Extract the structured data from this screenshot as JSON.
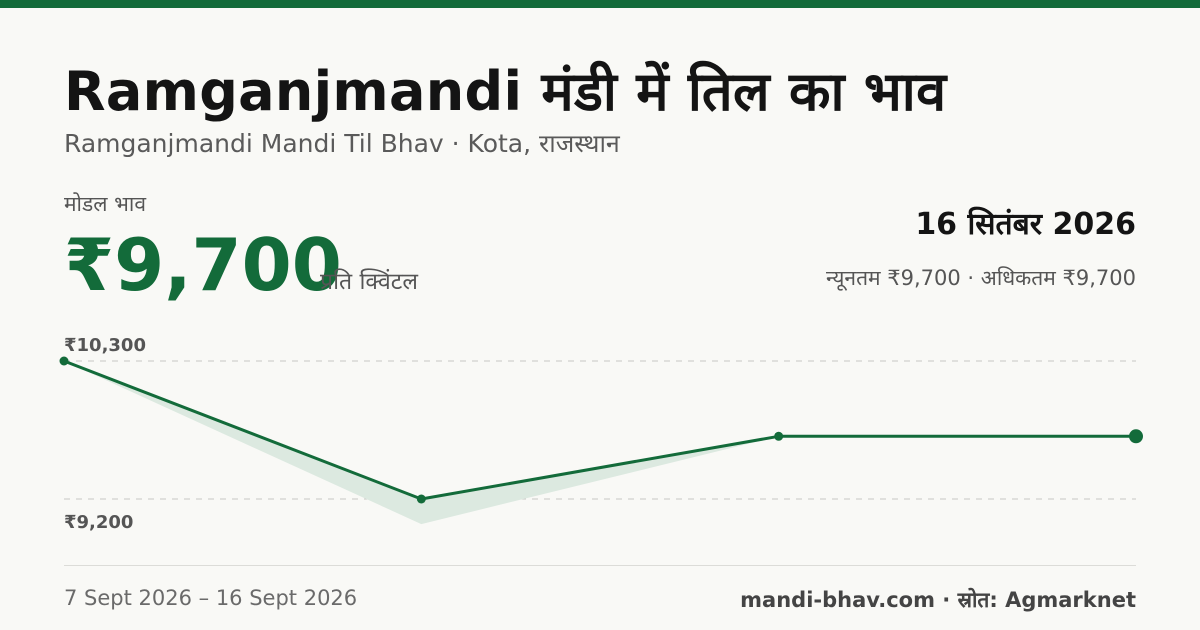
{
  "header": {
    "title": "Ramganjmandi मंडी में तिल का भाव",
    "subtitle": "Ramganjmandi Mandi Til Bhav · Kota, राजस्थान"
  },
  "price": {
    "label": "मोडल भाव",
    "value": "₹9,700",
    "unit": "प्रति क्विंटल"
  },
  "summary": {
    "date": "16 सितंबर 2026",
    "minmax": "न्यूनतम ₹9,700 · अधिकतम ₹9,700"
  },
  "footer": {
    "date_range": "7 Sept 2026 – 16 Sept 2026",
    "source": "mandi-bhav.com · स्रोत: Agmarknet"
  },
  "colors": {
    "accent": "#136b3a",
    "area_fill": "#dce9e0",
    "grid": "#c8c8c4",
    "background": "#f9f9f6"
  },
  "chart_data": {
    "type": "line",
    "x": [
      "2026-09-07",
      "2026-09-10",
      "2026-09-13",
      "2026-09-16"
    ],
    "series": [
      {
        "values": [
          10300,
          9200,
          9700,
          9700
        ]
      }
    ],
    "band_low": [
      10300,
      9000,
      9700,
      9700
    ],
    "ylim": [
      9200,
      10300
    ],
    "y_tick_labels": [
      "₹10,300",
      "₹9,200"
    ],
    "grid": true,
    "legend": "none"
  }
}
